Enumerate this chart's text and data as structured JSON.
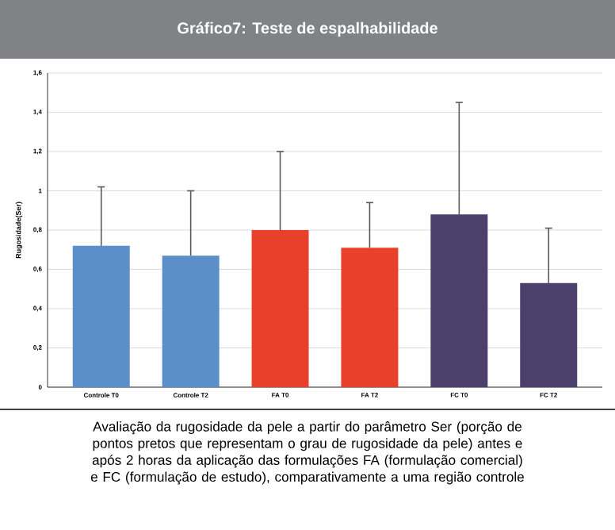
{
  "chart_data": {
    "type": "bar",
    "title": "Gráfico7: Teste de espalhabilidade",
    "ylabel": "Rugosidade(Ser)",
    "categories": [
      "Controle T0",
      "Controle T2",
      "FA T0",
      "FA T2",
      "FC T0",
      "FC T2"
    ],
    "values": [
      0.72,
      0.67,
      0.8,
      0.71,
      0.88,
      0.53
    ],
    "colors": [
      "#5b8fc9",
      "#5b8fc9",
      "#e8402a",
      "#e8402a",
      "#4b3f6b",
      "#4b3f6b"
    ],
    "errors": [
      [
        0.72,
        1.02
      ],
      [
        0.67,
        1.0
      ],
      [
        0.8,
        1.2
      ],
      [
        0.71,
        0.94
      ],
      [
        0.88,
        1.45
      ],
      [
        0.53,
        0.81
      ]
    ],
    "ylim": [
      0,
      1.6
    ],
    "yticks": [
      {
        "value": 0,
        "label": "0"
      },
      {
        "value": 0.2,
        "label": "0,2"
      },
      {
        "value": 0.4,
        "label": "0,4"
      },
      {
        "value": 0.6,
        "label": "0,6"
      },
      {
        "value": 0.8,
        "label": "0,8"
      },
      {
        "value": 1,
        "label": "1"
      },
      {
        "value": 1.2,
        "label": "1,2"
      },
      {
        "value": 1.4,
        "label": "1,4"
      },
      {
        "value": 1.6,
        "label": "1,6"
      }
    ],
    "grid": "y",
    "annotations": [
      "Avaliação da rugosidade da pele a partir do parâmetro Ser (porção de pontos pretos que representam o grau de rugosidade da pele) antes e após 2 horas da aplicação das formulações FA (formulação comercial) e FC (formulação de estudo), comparativamente a uma região controle"
    ]
  }
}
